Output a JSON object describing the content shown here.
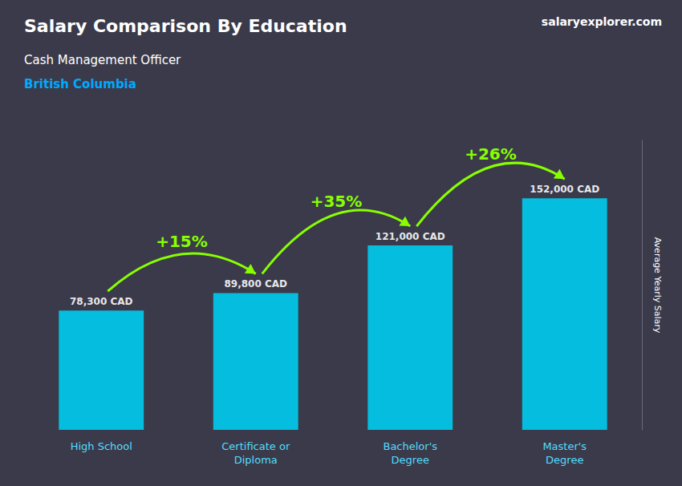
{
  "chart_data": {
    "type": "bar",
    "title": "Salary Comparison By Education",
    "subtitle": [
      "Cash Management Officer",
      "British Columbia"
    ],
    "y_label": "Average Yearly Salary",
    "categories": [
      "High School",
      "Certificate or\nDiploma",
      "Bachelor's\nDegree",
      "Master's\nDegree"
    ],
    "values": [
      78300,
      89800,
      121000,
      152000
    ],
    "value_labels": [
      "78,300 CAD",
      "89,800 CAD",
      "121,000 CAD",
      "152,000 CAD"
    ],
    "data_labels": true,
    "annotations": [
      "+15%",
      "+35%",
      "+26%",
      "salaryexplorer.com"
    ],
    "color": "#00ccee",
    "ylim": [
      0,
      190000
    ],
    "tick_labels": "x",
    "grid": false
  }
}
